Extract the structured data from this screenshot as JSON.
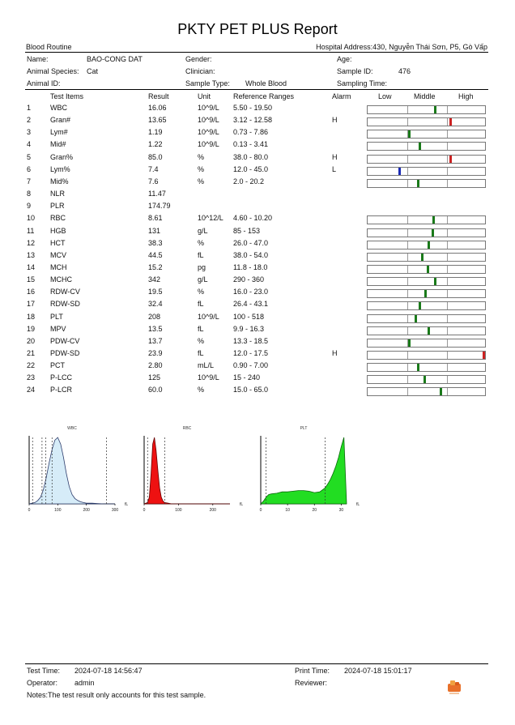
{
  "report": {
    "title": "PKTY PET PLUS Report",
    "section": "Blood Routine",
    "hospital_address": "Hospital Address:430, Nguyễn Thái Sơn, P5, Gò Vấp"
  },
  "patient": {
    "name_label": "Name:",
    "name_value": "BAO-CONG DAT",
    "gender_label": "Gender:",
    "age_label": "Age:",
    "species_label": "Animal Species:",
    "species_value": "Cat",
    "clinician_label": "Clinician:",
    "sample_id_label": "Sample ID:",
    "sample_id_value": "476",
    "animal_id_label": "Animal ID:",
    "sample_type_label": "Sample Type:",
    "sample_type_value": "Whole Blood",
    "sampling_time_label": "Sampling Time:"
  },
  "table": {
    "headers": {
      "item": "Test Items",
      "result": "Result",
      "unit": "Unit",
      "ref": "Reference Ranges",
      "alarm": "Alarm",
      "low": "Low",
      "middle": "Middle",
      "high": "High"
    },
    "rows": [
      {
        "no": "1",
        "item": "WBC",
        "result": "16.06",
        "unit": "10^9/L",
        "ref": "5.50 - 19.50",
        "alarm": "",
        "gauge": true,
        "level": 0.57,
        "status": "normal"
      },
      {
        "no": "2",
        "item": "Gran#",
        "result": "13.65",
        "unit": "10^9/L",
        "ref": "3.12 - 12.58",
        "alarm": "H",
        "gauge": true,
        "level": 0.7,
        "status": "high"
      },
      {
        "no": "3",
        "item": "Lym#",
        "result": "1.19",
        "unit": "10^9/L",
        "ref": "0.73 - 7.86",
        "alarm": "",
        "gauge": true,
        "level": 0.35,
        "status": "normal"
      },
      {
        "no": "4",
        "item": "Mid#",
        "result": "1.22",
        "unit": "10^9/L",
        "ref": "0.13 - 3.41",
        "alarm": "",
        "gauge": true,
        "level": 0.44,
        "status": "normal"
      },
      {
        "no": "5",
        "item": "Gran%",
        "result": "85.0",
        "unit": "%",
        "ref": "38.0 - 80.0",
        "alarm": "H",
        "gauge": true,
        "level": 0.7,
        "status": "high"
      },
      {
        "no": "6",
        "item": "Lym%",
        "result": "7.4",
        "unit": "%",
        "ref": "12.0 - 45.0",
        "alarm": "L",
        "gauge": true,
        "level": 0.27,
        "status": "low"
      },
      {
        "no": "7",
        "item": "Mid%",
        "result": "7.6",
        "unit": "%",
        "ref": "2.0 - 20.2",
        "alarm": "",
        "gauge": true,
        "level": 0.43,
        "status": "normal"
      },
      {
        "no": "8",
        "item": "NLR",
        "result": "11.47",
        "unit": "",
        "ref": "",
        "alarm": "",
        "gauge": false
      },
      {
        "no": "9",
        "item": "PLR",
        "result": "174.79",
        "unit": "",
        "ref": "",
        "alarm": "",
        "gauge": false
      },
      {
        "no": "10",
        "item": "RBC",
        "result": "8.61",
        "unit": "10^12/L",
        "ref": "4.60 - 10.20",
        "alarm": "",
        "gauge": true,
        "level": 0.56,
        "status": "normal"
      },
      {
        "no": "11",
        "item": "HGB",
        "result": "131",
        "unit": "g/L",
        "ref": "85 - 153",
        "alarm": "",
        "gauge": true,
        "level": 0.55,
        "status": "normal"
      },
      {
        "no": "12",
        "item": "HCT",
        "result": "38.3",
        "unit": "%",
        "ref": "26.0 - 47.0",
        "alarm": "",
        "gauge": true,
        "level": 0.52,
        "status": "normal"
      },
      {
        "no": "13",
        "item": "MCV",
        "result": "44.5",
        "unit": "fL",
        "ref": "38.0 - 54.0",
        "alarm": "",
        "gauge": true,
        "level": 0.46,
        "status": "normal"
      },
      {
        "no": "14",
        "item": "MCH",
        "result": "15.2",
        "unit": "pg",
        "ref": "11.8 - 18.0",
        "alarm": "",
        "gauge": true,
        "level": 0.51,
        "status": "normal"
      },
      {
        "no": "15",
        "item": "MCHC",
        "result": "342",
        "unit": "g/L",
        "ref": "290 - 360",
        "alarm": "",
        "gauge": true,
        "level": 0.57,
        "status": "normal"
      },
      {
        "no": "16",
        "item": "RDW-CV",
        "result": "19.5",
        "unit": "%",
        "ref": "16.0 - 23.0",
        "alarm": "",
        "gauge": true,
        "level": 0.49,
        "status": "normal"
      },
      {
        "no": "17",
        "item": "RDW-SD",
        "result": "32.4",
        "unit": "fL",
        "ref": "26.4 - 43.1",
        "alarm": "",
        "gauge": true,
        "level": 0.44,
        "status": "normal"
      },
      {
        "no": "18",
        "item": "PLT",
        "result": "208",
        "unit": "10^9/L",
        "ref": "100 - 518",
        "alarm": "",
        "gauge": true,
        "level": 0.41,
        "status": "normal"
      },
      {
        "no": "19",
        "item": "MPV",
        "result": "13.5",
        "unit": "fL",
        "ref": "9.9 - 16.3",
        "alarm": "",
        "gauge": true,
        "level": 0.52,
        "status": "normal"
      },
      {
        "no": "20",
        "item": "PDW-CV",
        "result": "13.7",
        "unit": "%",
        "ref": "13.3 - 18.5",
        "alarm": "",
        "gauge": true,
        "level": 0.35,
        "status": "normal"
      },
      {
        "no": "21",
        "item": "PDW-SD",
        "result": "23.9",
        "unit": "fL",
        "ref": "12.0 - 17.5",
        "alarm": "H",
        "gauge": true,
        "level": 0.99,
        "status": "high"
      },
      {
        "no": "22",
        "item": "PCT",
        "result": "2.80",
        "unit": "mL/L",
        "ref": "0.90 - 7.00",
        "alarm": "",
        "gauge": true,
        "level": 0.43,
        "status": "normal"
      },
      {
        "no": "23",
        "item": "P-LCC",
        "result": "125",
        "unit": "10^9/L",
        "ref": "15 - 240",
        "alarm": "",
        "gauge": true,
        "level": 0.48,
        "status": "normal"
      },
      {
        "no": "24",
        "item": "P-LCR",
        "result": "60.0",
        "unit": "%",
        "ref": "15.0 - 65.0",
        "alarm": "",
        "gauge": true,
        "level": 0.62,
        "status": "normal"
      }
    ]
  },
  "colors": {
    "normal": "#1a7a1a",
    "high": "#cc2222",
    "low": "#1a2ab5"
  },
  "chart_data": [
    {
      "type": "area",
      "title": "WBC",
      "unit": "fL",
      "x_ticks": [
        "0",
        "100",
        "200",
        "300"
      ],
      "xlim": [
        0,
        300
      ],
      "x": [
        0,
        20,
        30,
        40,
        50,
        60,
        70,
        80,
        90,
        100,
        110,
        120,
        130,
        140,
        150,
        160,
        170,
        180,
        190,
        200,
        220,
        240,
        260,
        280,
        300
      ],
      "values": [
        0,
        2,
        5,
        10,
        22,
        40,
        62,
        82,
        96,
        100,
        90,
        70,
        46,
        26,
        14,
        8,
        5,
        3,
        2,
        1,
        1,
        0.5,
        0,
        0,
        0
      ],
      "fill": "#d6ecf8",
      "stroke": "#2a3a6a",
      "markers": [
        12,
        45,
        58,
        80,
        270
      ]
    },
    {
      "type": "area",
      "title": "RBC",
      "unit": "fL",
      "x_ticks": [
        "0",
        "100",
        "200"
      ],
      "xlim": [
        0,
        250
      ],
      "x": [
        0,
        10,
        15,
        20,
        25,
        30,
        35,
        40,
        45,
        50,
        55,
        60,
        70,
        80,
        100,
        150,
        200,
        250
      ],
      "values": [
        0,
        2,
        10,
        45,
        90,
        100,
        80,
        50,
        24,
        10,
        4,
        2,
        1,
        0,
        0,
        0,
        0,
        0
      ],
      "fill": "#ee1111",
      "stroke": "#660000",
      "markers": [
        10,
        60
      ]
    },
    {
      "type": "area",
      "title": "PLT",
      "unit": "fL",
      "x_ticks": [
        "0",
        "10",
        "20",
        "30"
      ],
      "xlim": [
        0,
        32
      ],
      "x": [
        0,
        1,
        2,
        3,
        4,
        6,
        8,
        10,
        12,
        14,
        16,
        18,
        20,
        22,
        24,
        25,
        26,
        27,
        28,
        29,
        30,
        31,
        32
      ],
      "values": [
        0,
        4,
        10,
        14,
        15,
        16,
        18,
        18,
        19,
        20,
        20,
        19,
        17,
        18,
        24,
        30,
        37,
        46,
        57,
        70,
        86,
        100,
        0
      ],
      "fill": "#22dd22",
      "stroke": "#0a6a0a",
      "markers": [
        2,
        24
      ]
    }
  ],
  "footer": {
    "test_time_label": "Test Time:",
    "test_time_value": "2024-07-18 14:56:47",
    "operator_label": "Operator:",
    "operator_value": "admin",
    "print_time_label": "Print Time:",
    "print_time_value": "2024-07-18 15:01:17",
    "reviewer_label": "Reviewer:",
    "note": "Notes:The test result only accounts for this test sample."
  }
}
